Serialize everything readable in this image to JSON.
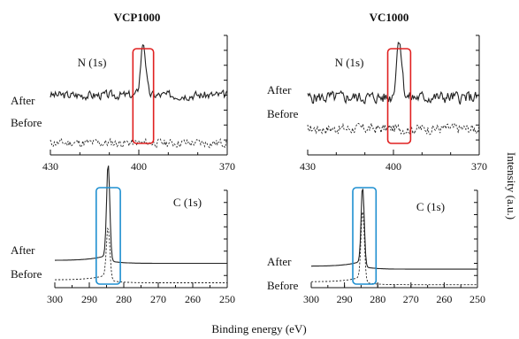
{
  "figure": {
    "column_titles": [
      "VCP1000",
      "VC1000"
    ],
    "x_axis_title": "Binding energy (eV)",
    "y_axis_title": "Intensity (a.u.)",
    "colors": {
      "n_highlight": "#e02020",
      "c_highlight": "#1e8fd0",
      "trace": "#222222"
    }
  },
  "chart_data": [
    {
      "type": "line",
      "column": "VCP1000",
      "title": "N (1s)",
      "xlim": [
        430,
        370
      ],
      "xticks": [
        430,
        400,
        370
      ],
      "highlight": {
        "from": 402,
        "to": 395,
        "color": "#e02020"
      },
      "series": [
        {
          "name": "After",
          "style": "solid",
          "baseline": 0.5,
          "noise": 0.05,
          "seed": 3,
          "peaks": [
            {
              "x": 398.5,
              "h": 0.44,
              "w": 1.2
            }
          ],
          "x": [
            430,
            370
          ]
        },
        {
          "name": "Before",
          "style": "dashed",
          "baseline": 0.1,
          "noise": 0.05,
          "seed": 11,
          "peaks": [],
          "x": [
            430,
            370
          ]
        }
      ]
    },
    {
      "type": "line",
      "column": "VC1000",
      "title": "N (1s)",
      "xlim": [
        430,
        370
      ],
      "xticks": [
        430,
        400,
        370
      ],
      "highlight": {
        "from": 402,
        "to": 394,
        "color": "#e02020"
      },
      "series": [
        {
          "name": "After",
          "style": "solid",
          "baseline": 0.48,
          "noise": 0.07,
          "seed": 5,
          "peaks": [
            {
              "x": 398,
              "h": 0.5,
              "w": 1.3
            }
          ],
          "x": [
            430,
            370
          ]
        },
        {
          "name": "Before",
          "style": "dashed",
          "baseline": 0.22,
          "noise": 0.06,
          "seed": 17,
          "peaks": [],
          "x": [
            430,
            370
          ]
        }
      ]
    },
    {
      "type": "line",
      "column": "VCP1000",
      "title": "C (1s)",
      "xlim": [
        300,
        250
      ],
      "xticks": [
        300,
        290,
        280,
        270,
        260,
        250
      ],
      "highlight": {
        "from": 288,
        "to": 281,
        "color": "#1e8fd0"
      },
      "series": [
        {
          "name": "After",
          "style": "solid",
          "baseline": 0.28,
          "noise": 0.0,
          "seed": 1,
          "peaks": [
            {
              "x": 284.5,
              "h": 0.98,
              "w": 0.65
            }
          ],
          "x": [
            300,
            250
          ]
        },
        {
          "name": "Before",
          "style": "dashed",
          "baseline": 0.08,
          "noise": 0.0,
          "seed": 2,
          "peaks": [
            {
              "x": 284.5,
              "h": 0.52,
              "w": 0.7
            }
          ],
          "x": [
            300,
            250
          ]
        }
      ]
    },
    {
      "type": "line",
      "column": "VC1000",
      "title": "C (1s)",
      "xlim": [
        300,
        250
      ],
      "xticks": [
        300,
        290,
        280,
        270,
        260,
        250
      ],
      "highlight": {
        "from": 287.5,
        "to": 280.5,
        "color": "#1e8fd0"
      },
      "series": [
        {
          "name": "After",
          "style": "solid",
          "baseline": 0.22,
          "noise": 0.0,
          "seed": 1,
          "peaks": [
            {
              "x": 284.5,
              "h": 0.8,
              "w": 0.65
            }
          ],
          "x": [
            300,
            250
          ]
        },
        {
          "name": "Before",
          "style": "dashed",
          "baseline": 0.06,
          "noise": 0.0,
          "seed": 2,
          "peaks": [
            {
              "x": 284.5,
              "h": 0.72,
              "w": 0.7
            }
          ],
          "x": [
            300,
            250
          ]
        }
      ]
    }
  ]
}
